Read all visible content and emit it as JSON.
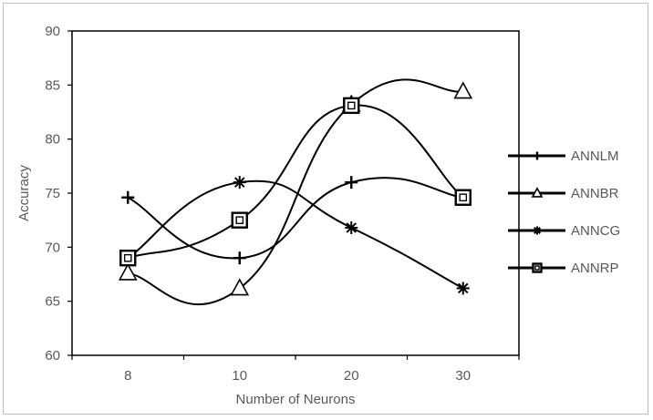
{
  "chart_data": {
    "type": "line",
    "title": "",
    "xlabel": "Number of Neurons",
    "ylabel": "Accuracy",
    "categories": [
      "8",
      "10",
      "20",
      "30"
    ],
    "ylim": [
      60,
      90
    ],
    "yticks": [
      60,
      65,
      70,
      75,
      80,
      85,
      90
    ],
    "smooth": true,
    "grid": false,
    "legend_position": "right",
    "series": [
      {
        "name": "ANNLM",
        "marker": "plus",
        "color": "#000000",
        "values": [
          74.6,
          69.0,
          76.0,
          74.6
        ]
      },
      {
        "name": "ANNBR",
        "marker": "triangle",
        "color": "#000000",
        "values": [
          67.6,
          66.2,
          83.2,
          84.4
        ]
      },
      {
        "name": "ANNCG",
        "marker": "asterisk",
        "color": "#000000",
        "values": [
          69.0,
          76.0,
          71.8,
          66.2
        ]
      },
      {
        "name": "ANNRP",
        "marker": "square",
        "color": "#000000",
        "values": [
          69.0,
          72.5,
          83.1,
          74.6
        ]
      }
    ]
  }
}
